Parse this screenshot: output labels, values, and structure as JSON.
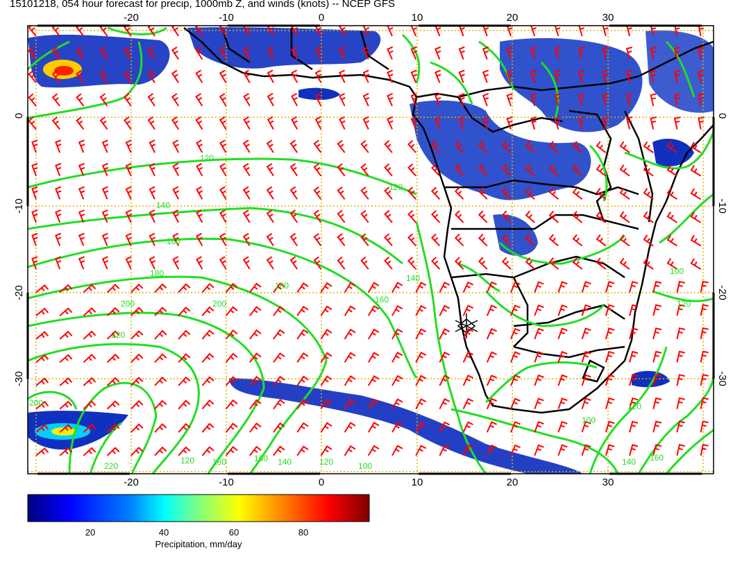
{
  "title": "15101218, 054 hour forecast for precip, 1000mb Z, and winds (knots) -- NCEP GFS",
  "map": {
    "lon_ticks": [
      "-20",
      "-10",
      "0",
      "10",
      "20",
      "30"
    ],
    "lat_ticks": [
      "0",
      "-10",
      "-20",
      "-30"
    ],
    "contour_labels": [
      "120",
      "120",
      "140",
      "140",
      "160",
      "160",
      "180",
      "180",
      "200",
      "200",
      "220",
      "220",
      "180",
      "160",
      "140",
      "120",
      "100",
      "120",
      "140",
      "160",
      "120",
      "200",
      "100",
      "120",
      "100"
    ],
    "colors": {
      "wind_barbs": "#ff0000",
      "contours": "#22dd22",
      "coastline": "#000000",
      "graticule": "#e0b000"
    }
  },
  "colorbar": {
    "label": "Precipitation, mm/day",
    "ticks": [
      "20",
      "40",
      "60",
      "80"
    ],
    "colors": [
      "#00007f",
      "#0000ff",
      "#0080ff",
      "#00ffff",
      "#80ff80",
      "#ffff00",
      "#ff8000",
      "#ff0000",
      "#7f0000"
    ]
  }
}
